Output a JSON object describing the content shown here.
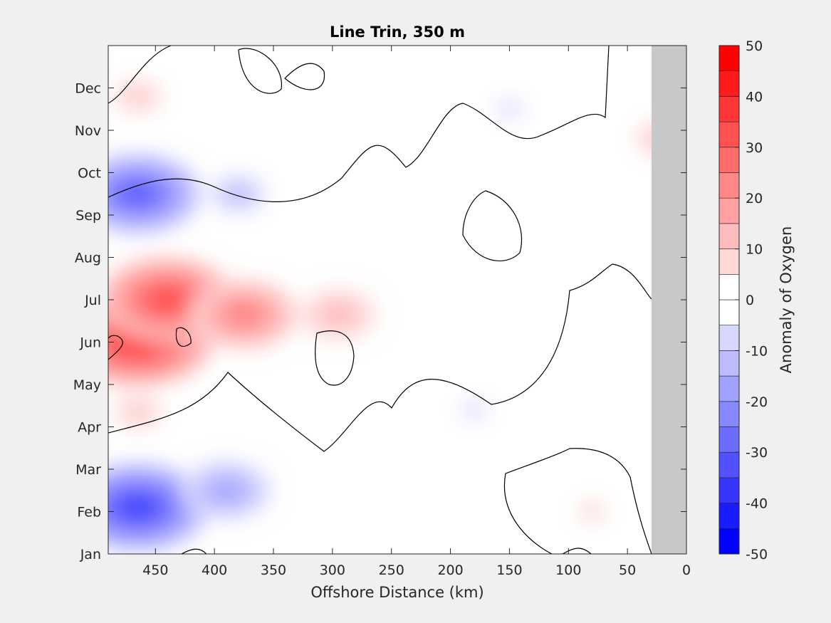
{
  "chart_data": {
    "type": "heatmap",
    "subtype": "filled-contour",
    "title": "Line Trin, 350 m",
    "xlabel": "Offshore Distance (km)",
    "ylabel": "",
    "xlim": [
      490,
      0
    ],
    "x_reversed": true,
    "x_ticks": [
      450,
      400,
      350,
      300,
      250,
      200,
      150,
      100,
      50,
      0
    ],
    "x_tick_labels": [
      "450",
      "400",
      "350",
      "300",
      "250",
      "200",
      "150",
      "100",
      "50",
      "0"
    ],
    "y_tick_labels": [
      "Jan",
      "Feb",
      "Mar",
      "Apr",
      "May",
      "Jun",
      "Jul",
      "Aug",
      "Sep",
      "Oct",
      "Nov",
      "Dec"
    ],
    "colorbar": {
      "label": "Anomaly of Oxygen",
      "range": [
        -50,
        50
      ],
      "ticks": [
        -50,
        -40,
        -30,
        -20,
        -10,
        0,
        10,
        20,
        30,
        40,
        50
      ],
      "tick_labels": [
        "-50",
        "-40",
        "-30",
        "-20",
        "-10",
        "0",
        "10",
        "20",
        "30",
        "40",
        "50"
      ],
      "levels": [
        -50,
        -45,
        -40,
        -35,
        -30,
        -25,
        -20,
        -15,
        -10,
        -5,
        0,
        5,
        10,
        15,
        20,
        25,
        30,
        35,
        40,
        45,
        50
      ],
      "colormap": "blue-white-red",
      "negative_color": "#0000ff",
      "positive_color": "#ff0000"
    },
    "no_data_region": {
      "x_range": [
        0,
        30
      ],
      "color": "#c8c8c8"
    },
    "grid": false,
    "legend": "none",
    "zero_contour_color": "#000000",
    "features": [
      {
        "x": 465,
        "y": 5.05,
        "value": 48
      },
      {
        "x": 440,
        "y": 6.0,
        "value": 42
      },
      {
        "x": 375,
        "y": 5.65,
        "value": 30
      },
      {
        "x": 295,
        "y": 5.65,
        "value": 17
      },
      {
        "x": 465,
        "y": 1.1,
        "value": -44
      },
      {
        "x": 390,
        "y": 1.5,
        "value": -22
      },
      {
        "x": 465,
        "y": 8.5,
        "value": -38
      },
      {
        "x": 380,
        "y": 8.5,
        "value": -15
      },
      {
        "x": 150,
        "y": 10.5,
        "value": -8
      },
      {
        "x": 465,
        "y": 10.8,
        "value": 12
      },
      {
        "x": 20,
        "y": 9.8,
        "value": 14
      },
      {
        "x": 465,
        "y": 3.35,
        "value": 12
      },
      {
        "x": 80,
        "y": 1.0,
        "value": 9
      },
      {
        "x": 180,
        "y": 3.4,
        "value": -8
      }
    ]
  }
}
